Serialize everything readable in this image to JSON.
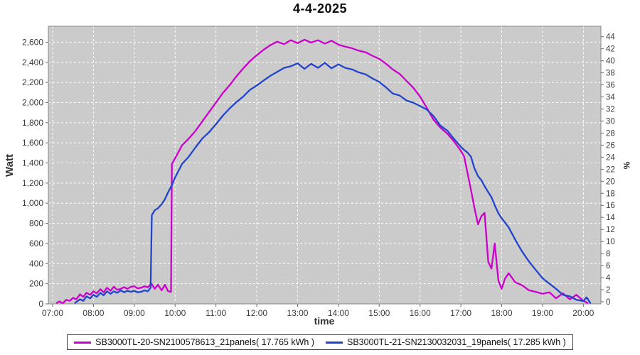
{
  "title": "4-4-2025",
  "colors": {
    "series1": "#CC00CC",
    "series2": "#2244CC",
    "plot_background": "#CBCBCB",
    "gridline": "#FFFFFF",
    "plot_border": "#848484",
    "tick_mark": "#6B6B6B",
    "tick_text": "#3B3B3B"
  },
  "axes": {
    "watt": {
      "label": "Watt",
      "tick_values": [
        0,
        200,
        400,
        600,
        800,
        1000,
        1200,
        1400,
        1600,
        1800,
        2000,
        2200,
        2400,
        2600
      ],
      "tick_labels": [
        "0",
        "200",
        "400",
        "600",
        "800",
        "1,000",
        "1,200",
        "1,400",
        "1,600",
        "1,800",
        "2,000",
        "2,200",
        "2,400",
        "2,600"
      ]
    },
    "percent": {
      "label": "%",
      "tick_values": [
        0,
        2,
        4,
        6,
        8,
        10,
        12,
        14,
        16,
        18,
        20,
        22,
        24,
        26,
        28,
        30,
        32,
        34,
        36,
        38,
        40,
        42,
        44
      ],
      "tick_labels": [
        "0",
        "2",
        "4",
        "6",
        "8",
        "10",
        "12",
        "14",
        "16",
        "18",
        "20",
        "22",
        "24",
        "26",
        "28",
        "30",
        "32",
        "34",
        "36",
        "38",
        "40",
        "42",
        "44"
      ]
    },
    "time": {
      "label": "time",
      "tick_values": [
        7,
        8,
        9,
        10,
        11,
        12,
        13,
        14,
        15,
        16,
        17,
        18,
        19,
        20
      ],
      "tick_labels": [
        "07:00",
        "08:00",
        "09:00",
        "10:00",
        "11:00",
        "12:00",
        "13:00",
        "14:00",
        "15:00",
        "16:00",
        "17:00",
        "18:00",
        "19:00",
        "20:00"
      ]
    }
  },
  "legend": {
    "items": [
      {
        "label": "SB3000TL-20-SN2100578613_21panels( 17.765 kWh )",
        "color": "#CC00CC"
      },
      {
        "label": "SB3000TL-21-SN2130032031_19panels( 17.285 kWh )",
        "color": "#2244CC"
      }
    ]
  },
  "chart_data": {
    "type": "line",
    "title": "4-4-2025",
    "xlabel": "time",
    "ylabel_left": "Watt",
    "ylabel_right": "%",
    "x_unit": "decimal_hours",
    "x_range_hours": [
      6.895,
      20.43
    ],
    "ylim_watt": [
      0,
      2758
    ],
    "ylim_percent": [
      0,
      44
    ],
    "grid": "white dashed on gray plot background",
    "legend_position": "bottom-center",
    "series": [
      {
        "name": "SB3000TL-20-SN2100578613_21panels( 17.765 kWh )",
        "color": "#CC00CC",
        "x": [
          7.1,
          7.17,
          7.25,
          7.33,
          7.42,
          7.5,
          7.58,
          7.67,
          7.75,
          7.83,
          7.92,
          8.0,
          8.08,
          8.17,
          8.25,
          8.33,
          8.42,
          8.5,
          8.58,
          8.67,
          8.75,
          8.83,
          8.92,
          9.0,
          9.08,
          9.17,
          9.25,
          9.33,
          9.42,
          9.5,
          9.58,
          9.67,
          9.75,
          9.83,
          9.9,
          9.92,
          10.0,
          10.17,
          10.33,
          10.5,
          10.67,
          10.83,
          11.0,
          11.17,
          11.33,
          11.5,
          11.67,
          11.83,
          12.0,
          12.17,
          12.33,
          12.5,
          12.67,
          12.83,
          13.0,
          13.17,
          13.33,
          13.5,
          13.67,
          13.83,
          14.0,
          14.17,
          14.33,
          14.5,
          14.67,
          14.83,
          15.0,
          15.17,
          15.33,
          15.5,
          15.67,
          15.83,
          16.0,
          16.17,
          16.33,
          16.5,
          16.67,
          16.83,
          17.0,
          17.08,
          17.17,
          17.25,
          17.33,
          17.42,
          17.5,
          17.58,
          17.67,
          17.75,
          17.83,
          17.92,
          18.0,
          18.08,
          18.17,
          18.25,
          18.33,
          18.5,
          18.67,
          18.83,
          19.0,
          19.17,
          19.33,
          19.5,
          19.67,
          19.83,
          20.0,
          20.1
        ],
        "y_watt": [
          10,
          25,
          5,
          40,
          30,
          60,
          45,
          95,
          70,
          110,
          90,
          125,
          105,
          145,
          115,
          160,
          130,
          170,
          140,
          150,
          165,
          150,
          170,
          175,
          155,
          160,
          175,
          165,
          200,
          150,
          190,
          135,
          190,
          125,
          120,
          1390,
          1445,
          1575,
          1640,
          1720,
          1815,
          1905,
          2000,
          2095,
          2170,
          2260,
          2340,
          2410,
          2470,
          2525,
          2570,
          2605,
          2580,
          2620,
          2590,
          2625,
          2595,
          2620,
          2585,
          2615,
          2575,
          2555,
          2540,
          2515,
          2500,
          2465,
          2435,
          2385,
          2330,
          2285,
          2215,
          2150,
          2060,
          1945,
          1830,
          1750,
          1690,
          1615,
          1520,
          1465,
          1285,
          1130,
          960,
          790,
          870,
          905,
          420,
          350,
          600,
          230,
          150,
          250,
          305,
          260,
          215,
          185,
          135,
          120,
          100,
          115,
          55,
          105,
          45,
          90,
          30,
          10
        ]
      },
      {
        "name": "SB3000TL-21-SN2130032031_19panels( 17.285 kWh )",
        "color": "#2244CC",
        "x": [
          7.55,
          7.67,
          7.75,
          7.83,
          7.92,
          8.0,
          8.08,
          8.17,
          8.25,
          8.33,
          8.42,
          8.5,
          8.58,
          8.67,
          8.75,
          8.83,
          8.92,
          9.0,
          9.08,
          9.17,
          9.25,
          9.33,
          9.4,
          9.43,
          9.5,
          9.58,
          9.67,
          9.75,
          9.83,
          9.92,
          10.0,
          10.17,
          10.33,
          10.5,
          10.67,
          10.83,
          11.0,
          11.17,
          11.33,
          11.5,
          11.67,
          11.83,
          12.0,
          12.17,
          12.33,
          12.5,
          12.67,
          12.83,
          13.0,
          13.17,
          13.33,
          13.5,
          13.67,
          13.83,
          14.0,
          14.17,
          14.33,
          14.5,
          14.67,
          14.83,
          15.0,
          15.17,
          15.33,
          15.5,
          15.67,
          15.83,
          16.0,
          16.17,
          16.33,
          16.5,
          16.67,
          16.83,
          17.0,
          17.08,
          17.17,
          17.25,
          17.33,
          17.42,
          17.5,
          17.58,
          17.67,
          17.75,
          17.83,
          17.92,
          18.0,
          18.08,
          18.17,
          18.25,
          18.33,
          18.5,
          18.67,
          18.83,
          19.0,
          19.17,
          19.33,
          19.5,
          19.67,
          19.83,
          20.0,
          20.08,
          20.17
        ],
        "y_watt": [
          10,
          45,
          30,
          75,
          55,
          90,
          70,
          110,
          85,
          125,
          100,
          125,
          110,
          135,
          115,
          130,
          120,
          130,
          115,
          120,
          135,
          125,
          160,
          880,
          930,
          950,
          990,
          1040,
          1110,
          1180,
          1255,
          1390,
          1460,
          1555,
          1645,
          1705,
          1785,
          1870,
          1940,
          2005,
          2060,
          2125,
          2170,
          2220,
          2265,
          2305,
          2345,
          2360,
          2390,
          2335,
          2385,
          2345,
          2395,
          2340,
          2380,
          2345,
          2330,
          2300,
          2280,
          2240,
          2205,
          2150,
          2090,
          2070,
          2020,
          2000,
          1965,
          1930,
          1865,
          1770,
          1720,
          1640,
          1560,
          1530,
          1500,
          1460,
          1350,
          1270,
          1230,
          1170,
          1110,
          1060,
          980,
          900,
          850,
          810,
          760,
          700,
          640,
          520,
          420,
          340,
          255,
          200,
          150,
          90,
          75,
          40,
          28,
          65,
          10
        ]
      }
    ]
  }
}
